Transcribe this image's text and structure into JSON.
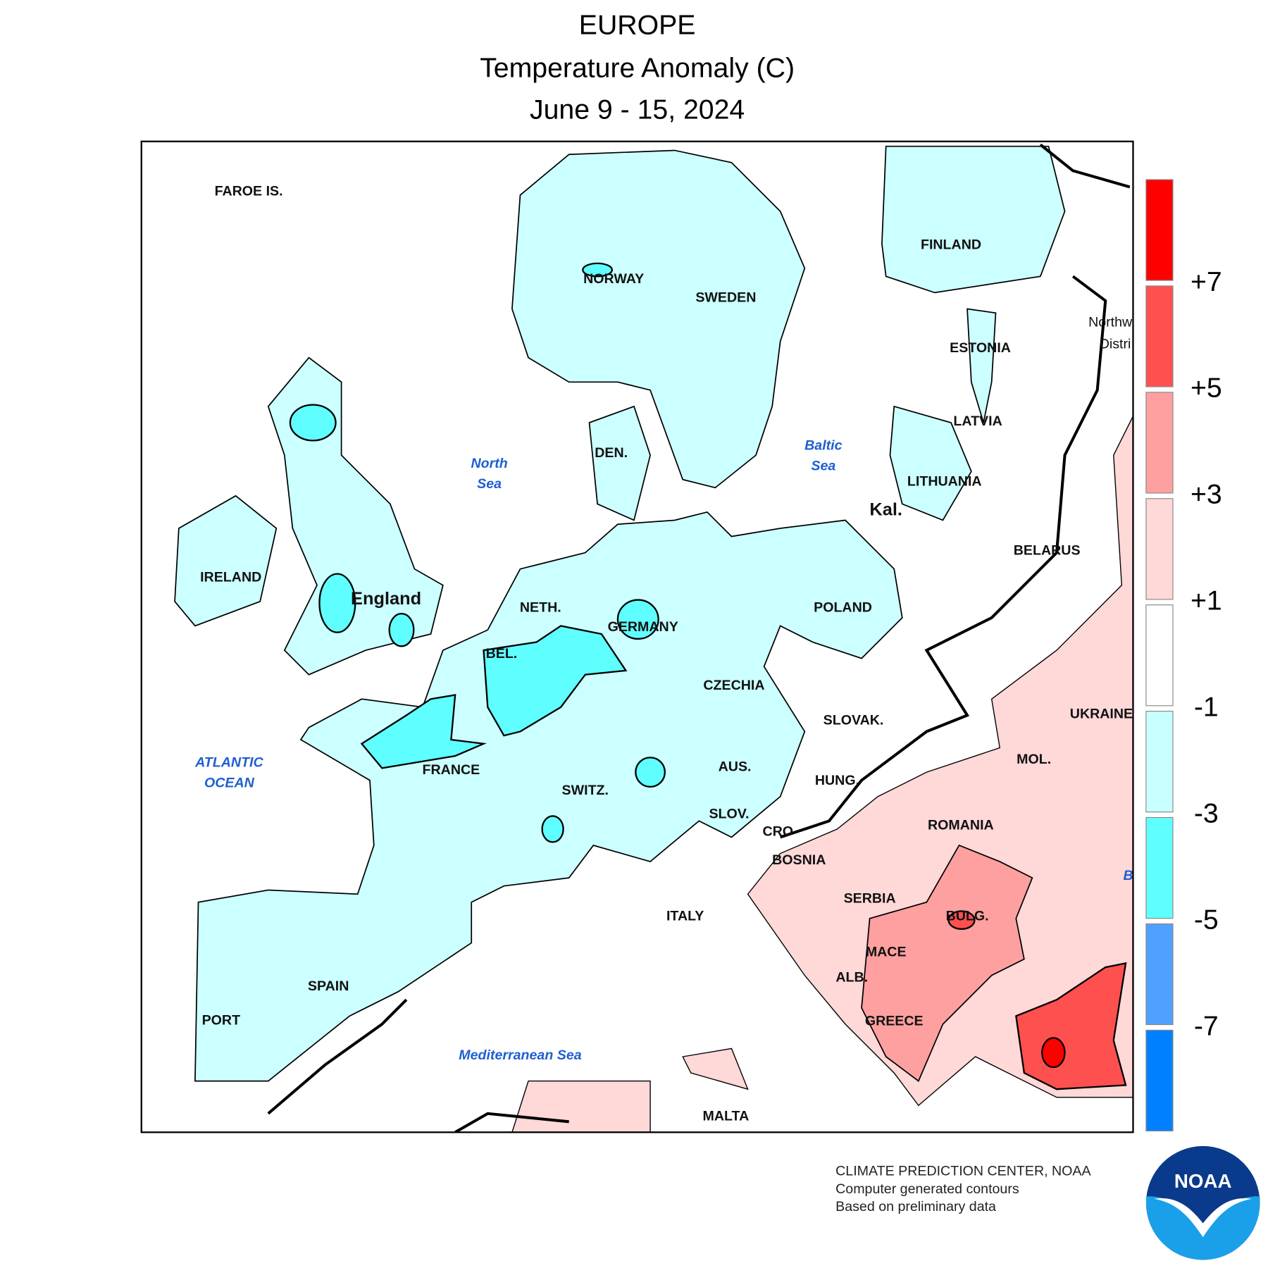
{
  "header": {
    "region": "EUROPE",
    "title": "Temperature Anomaly (C)",
    "period": "June 9 - 15, 2024"
  },
  "map": {
    "labels": [
      "FAROE IS.",
      "NORWAY",
      "SWEDEN",
      "FINLAND",
      "Northw",
      "Distri",
      "ESTONIA",
      "LATVIA",
      "LITHUANIA",
      "Kal.",
      "BELARUS",
      "POLAND",
      "DEN.",
      "IRELAND",
      "England",
      "NETH.",
      "GERMANY",
      "BEL.",
      "CZECHIA",
      "UKRAINE",
      "SLOVAK.",
      "FRANCE",
      "AUS.",
      "MOL.",
      "SWITZ.",
      "HUNG.",
      "SLOV.",
      "CRO",
      "ROMANIA",
      "BOSNIA",
      "SERBIA",
      "ITALY",
      "BULG.",
      "MACE",
      "ALB.",
      "SPAIN",
      "PORT",
      "GREECE",
      "MALTA"
    ],
    "seas": [
      [
        "North",
        "Sea"
      ],
      [
        "Baltic",
        "Sea"
      ],
      [
        "ATLANTIC",
        "OCEAN"
      ],
      [
        "Mediterranean Sea"
      ],
      [
        "B"
      ]
    ]
  },
  "legend": {
    "labels": [
      "+7",
      "+5",
      "+3",
      "+1",
      "-1",
      "-3",
      "-5",
      "-7"
    ],
    "colors": [
      "#ff0000",
      "#ff5050",
      "#ffa0a0",
      "#ffd8d8",
      "#ffffff",
      "#c8ffff",
      "#60ffff",
      "#50a0ff",
      "#0080ff"
    ]
  },
  "footer": [
    "CLIMATE PREDICTION CENTER, NOAA",
    "Computer generated contours",
    "Based on preliminary data"
  ],
  "logo": "NOAA"
}
